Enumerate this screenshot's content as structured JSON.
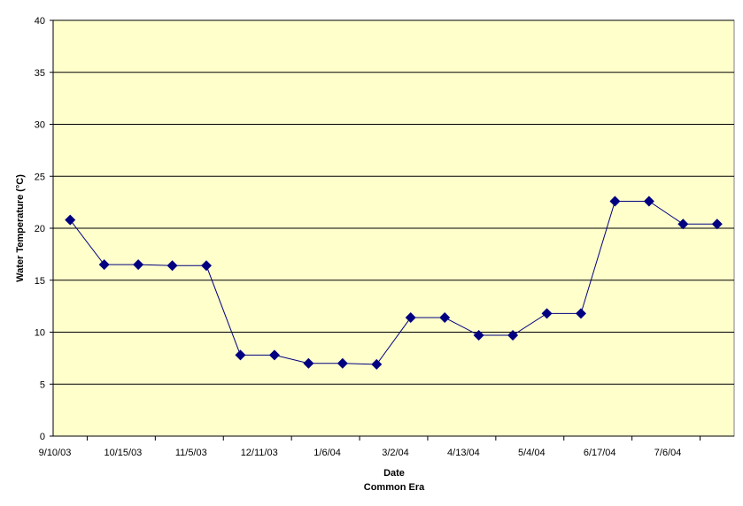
{
  "chart_data": {
    "type": "line",
    "title": "",
    "xlabel": "Date",
    "xlabel_sub": "Common Era",
    "ylabel": "Water Temperature (°C)",
    "ylim": [
      0,
      40
    ],
    "yticks": [
      0,
      5,
      10,
      15,
      20,
      25,
      30,
      35,
      40
    ],
    "grid": true,
    "legend": "none",
    "colors": {
      "plot_background": "#ffffcc",
      "gridline": "#000000",
      "series_line": "#000080",
      "marker": "#000080"
    },
    "xtick_labels": [
      "9/10/03",
      "10/15/03",
      "11/5/03",
      "12/11/03",
      "1/6/04",
      "3/2/04",
      "4/13/04",
      "5/4/04",
      "6/17/04",
      "7/6/04"
    ],
    "series": [
      {
        "values": [
          20.8,
          16.5,
          16.5,
          16.4,
          16.4,
          7.8,
          7.8,
          7.0,
          7.0,
          6.9,
          11.4,
          11.4,
          9.7,
          9.7,
          11.8,
          11.8,
          22.6,
          22.6,
          20.4,
          20.4
        ]
      }
    ]
  }
}
